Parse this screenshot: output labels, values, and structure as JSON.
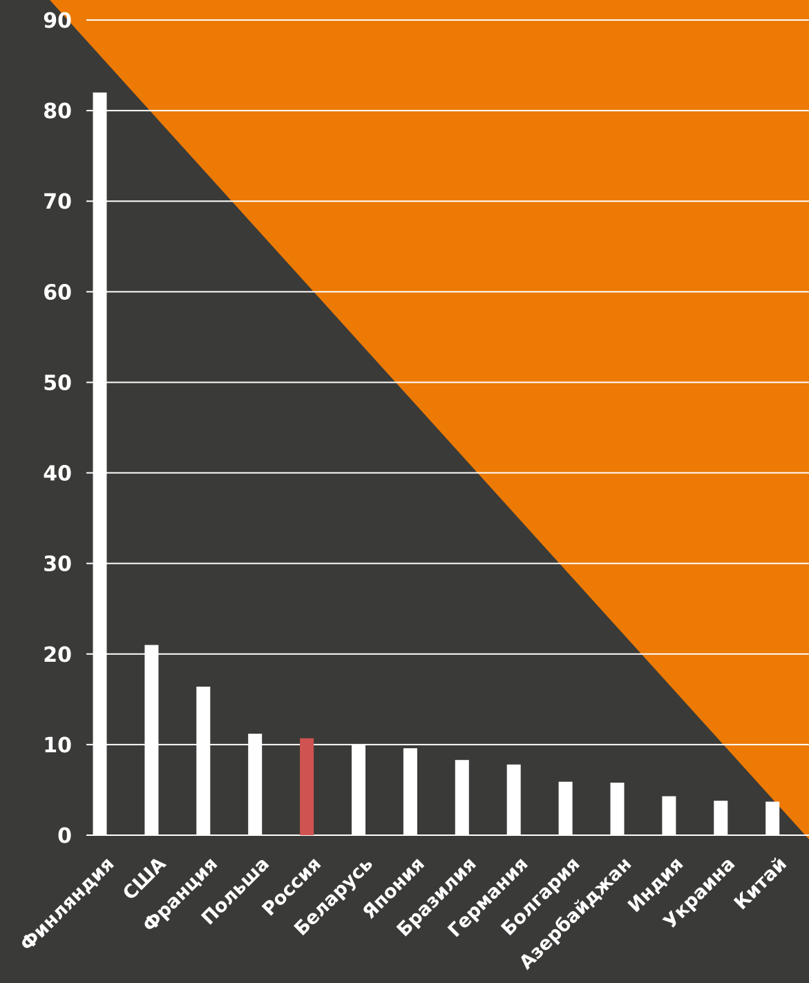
{
  "colors": {
    "background": "#3a3a38",
    "accent_triangle": "#ec7a05",
    "bar": "#ffffff",
    "highlight_bar": "#cf5350",
    "grid": "#ffffff"
  },
  "chart_data": {
    "type": "bar",
    "categories": [
      "Финляндия",
      "США",
      "Франция",
      "Польша",
      "Россия",
      "Беларусь",
      "Япония",
      "Бразилия",
      "Германия",
      "Болгария",
      "Азербайджан",
      "Индия",
      "Украина",
      "Китай"
    ],
    "values": [
      82,
      21,
      16.4,
      11.2,
      10.7,
      10,
      9.6,
      8.3,
      7.8,
      5.9,
      5.8,
      4.3,
      3.8,
      3.7
    ],
    "highlight_category": "Россия",
    "ylim": [
      0,
      90
    ],
    "yticks": [
      "0",
      "10",
      "20",
      "30",
      "40",
      "50",
      "60",
      "70",
      "80",
      "90"
    ],
    "grid": true,
    "title": "",
    "xlabel": "",
    "ylabel": ""
  }
}
